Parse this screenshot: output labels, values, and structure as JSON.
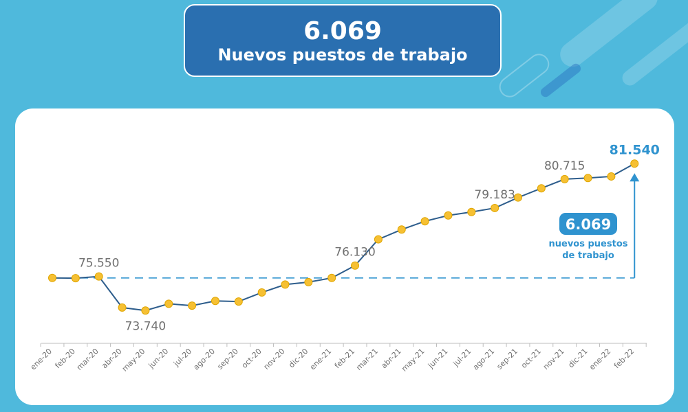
{
  "header": {
    "value": "6.069",
    "subtitle": "Nuevos puestos de trabajo"
  },
  "colors": {
    "background": "#4fb9dc",
    "header_box": "#2a6fb0",
    "line": "#2d5d8c",
    "marker": "#f6c033",
    "accent": "#2f93cf",
    "label": "#707070"
  },
  "chart_data": {
    "type": "line",
    "categories": [
      "ene-20",
      "feb-20",
      "mar-20",
      "abr-20",
      "may-20",
      "jun-20",
      "jul-20",
      "ago-20",
      "sep-20",
      "oct-20",
      "nov-20",
      "dic-20",
      "ene-21",
      "feb-21",
      "mar-21",
      "abr-21",
      "may-21",
      "jun-21",
      "jul-21",
      "ago-21",
      "sep-21",
      "oct-21",
      "nov-21",
      "dic-21",
      "ene-22",
      "feb-22"
    ],
    "values": [
      75471,
      75460,
      75550,
      73900,
      73740,
      74100,
      74000,
      74250,
      74220,
      74700,
      75120,
      75250,
      75471,
      76130,
      77520,
      78040,
      78480,
      78790,
      78970,
      79183,
      79740,
      80230,
      80715,
      80775,
      80860,
      81540
    ],
    "ylim": [
      72000,
      83300
    ],
    "baseline": 75471,
    "data_labels": [
      {
        "index": 2,
        "text": "75.550",
        "position": "above"
      },
      {
        "index": 4,
        "text": "73.740",
        "position": "below"
      },
      {
        "index": 13,
        "text": "76.130",
        "position": "above"
      },
      {
        "index": 19,
        "text": "79.183",
        "position": "above"
      },
      {
        "index": 22,
        "text": "80.715",
        "position": "above"
      },
      {
        "index": 25,
        "text": "81.540",
        "position": "above",
        "highlight": true
      }
    ],
    "annotation": {
      "value": "6.069",
      "line1": "nuevos puestos",
      "line2": "de trabajo"
    },
    "grid": false
  }
}
